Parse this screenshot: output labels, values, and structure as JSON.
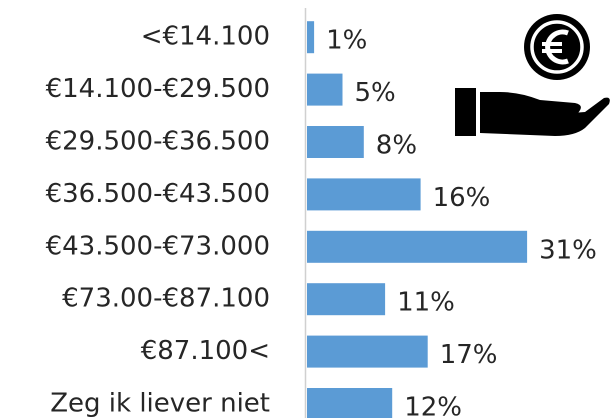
{
  "chart_data": {
    "type": "bar",
    "orientation": "horizontal",
    "categories": [
      "<€14.100",
      "€14.100-€29.500",
      "€29.500-€36.500",
      "€36.500-€43.500",
      "€43.500-€73.000",
      "€73.00-€87.100",
      "€87.100<",
      "Zeg ik liever niet"
    ],
    "values": [
      1,
      5,
      8,
      16,
      31,
      11,
      17,
      12
    ],
    "value_labels": [
      "1%",
      "5%",
      "8%",
      "16%",
      "31%",
      "11%",
      "17%",
      "12%"
    ],
    "color": "#5b9bd5"
  }
}
